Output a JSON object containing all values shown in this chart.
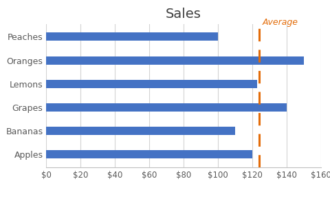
{
  "title": "Sales",
  "categories": [
    "Apples",
    "Bananas",
    "Grapes",
    "Lemons",
    "Oranges",
    "Peaches"
  ],
  "values": [
    120,
    110,
    140,
    123,
    150,
    100
  ],
  "bar_color": "#4472C4",
  "average": 124,
  "average_color": "#E36C09",
  "average_label": "Average",
  "xlim": [
    0,
    160
  ],
  "xticks": [
    0,
    20,
    40,
    60,
    80,
    100,
    120,
    140,
    160
  ],
  "background_color": "#FFFFFF",
  "grid_color": "#D3D3D3",
  "title_fontsize": 14,
  "tick_fontsize": 8.5,
  "ytick_fontsize": 9,
  "bar_height": 0.35
}
